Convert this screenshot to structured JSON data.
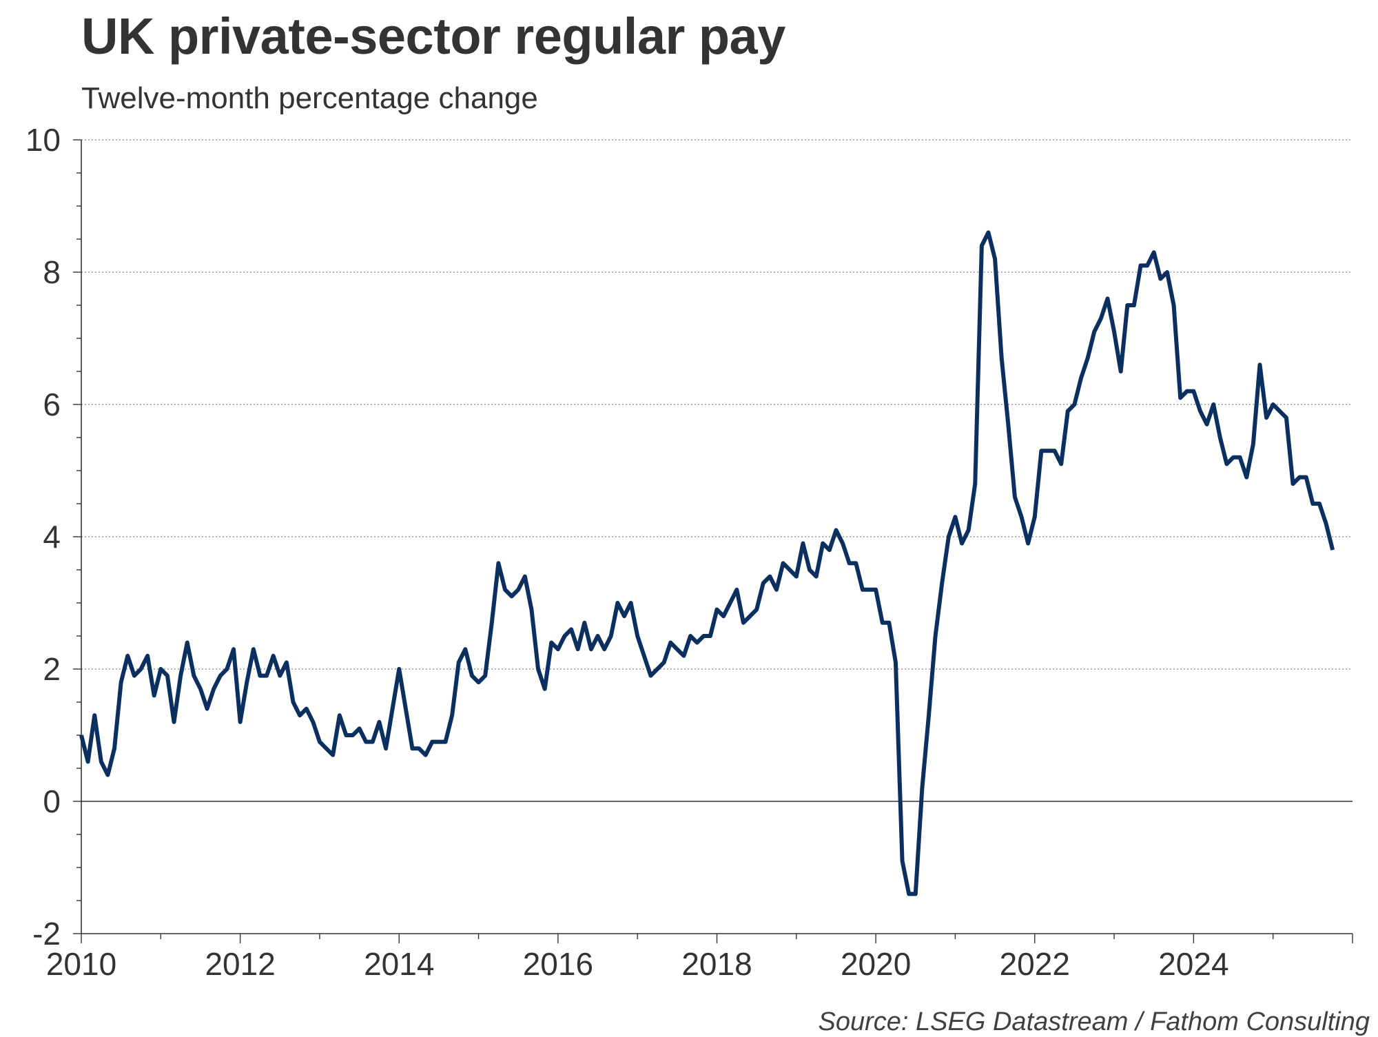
{
  "title": "UK private-sector regular pay",
  "subtitle": "Twelve-month percentage change",
  "source": "Source: LSEG Datastream / Fathom Consulting",
  "colors": {
    "line": "#0b2f5f",
    "grid": "#9a9a9a",
    "axis": "#333333",
    "text": "#333333"
  },
  "chart_data": {
    "type": "line",
    "title": "UK private-sector regular pay",
    "subtitle": "Twelve-month percentage change",
    "xlabel": "",
    "ylabel": "",
    "xlim": [
      2010,
      2026
    ],
    "ylim": [
      -2,
      10
    ],
    "x_ticks": [
      "2010",
      "2012",
      "2014",
      "2016",
      "2018",
      "2020",
      "2022",
      "2024"
    ],
    "y_ticks": [
      "-2",
      "0",
      "2",
      "4",
      "6",
      "8",
      "10"
    ],
    "grid": "horizontal-dotted",
    "legend": "none",
    "x_start": "2010-01",
    "x_frequency": "monthly",
    "series": [
      {
        "values": [
          1.0,
          0.6,
          1.3,
          0.6,
          0.4,
          0.8,
          1.8,
          2.2,
          1.9,
          2.0,
          2.2,
          1.6,
          2.0,
          1.9,
          1.2,
          1.9,
          2.4,
          1.9,
          1.7,
          1.4,
          1.7,
          1.9,
          2.0,
          2.3,
          1.2,
          1.8,
          2.3,
          1.9,
          1.9,
          2.2,
          1.9,
          2.1,
          1.5,
          1.3,
          1.4,
          1.2,
          0.9,
          0.8,
          0.7,
          1.3,
          1.0,
          1.0,
          1.1,
          0.9,
          0.9,
          1.2,
          0.8,
          1.4,
          2.0,
          1.4,
          0.8,
          0.8,
          0.7,
          0.9,
          0.9,
          0.9,
          1.3,
          2.1,
          2.3,
          1.9,
          1.8,
          1.9,
          2.7,
          3.6,
          3.2,
          3.1,
          3.2,
          3.4,
          2.9,
          2.0,
          1.7,
          2.4,
          2.3,
          2.5,
          2.6,
          2.3,
          2.7,
          2.3,
          2.5,
          2.3,
          2.5,
          3.0,
          2.8,
          3.0,
          2.5,
          2.2,
          1.9,
          2.0,
          2.1,
          2.4,
          2.3,
          2.2,
          2.5,
          2.4,
          2.5,
          2.5,
          2.9,
          2.8,
          3.0,
          3.2,
          2.7,
          2.8,
          2.9,
          3.3,
          3.4,
          3.2,
          3.6,
          3.5,
          3.4,
          3.9,
          3.5,
          3.4,
          3.9,
          3.8,
          4.1,
          3.9,
          3.6,
          3.6,
          3.2,
          3.2,
          3.2,
          2.7,
          2.7,
          2.1,
          -0.9,
          -1.4,
          -1.4,
          0.2,
          1.3,
          2.5,
          3.3,
          4.0,
          4.3,
          3.9,
          4.1,
          4.8,
          8.4,
          8.6,
          8.2,
          6.7,
          5.7,
          4.6,
          4.3,
          3.9,
          4.3,
          5.3,
          5.3,
          5.3,
          5.1,
          5.9,
          6.0,
          6.4,
          6.7,
          7.1,
          7.3,
          7.6,
          7.1,
          6.5,
          7.5,
          7.5,
          8.1,
          8.1,
          8.3,
          7.9,
          8.0,
          7.5,
          6.1,
          6.2,
          6.2,
          5.9,
          5.7,
          6.0,
          5.5,
          5.1,
          5.2,
          5.2,
          4.9,
          5.4,
          6.6,
          5.8,
          6.0,
          5.9,
          5.8,
          4.8,
          4.9,
          4.9,
          4.5,
          4.5,
          4.2,
          3.8
        ]
      }
    ]
  }
}
